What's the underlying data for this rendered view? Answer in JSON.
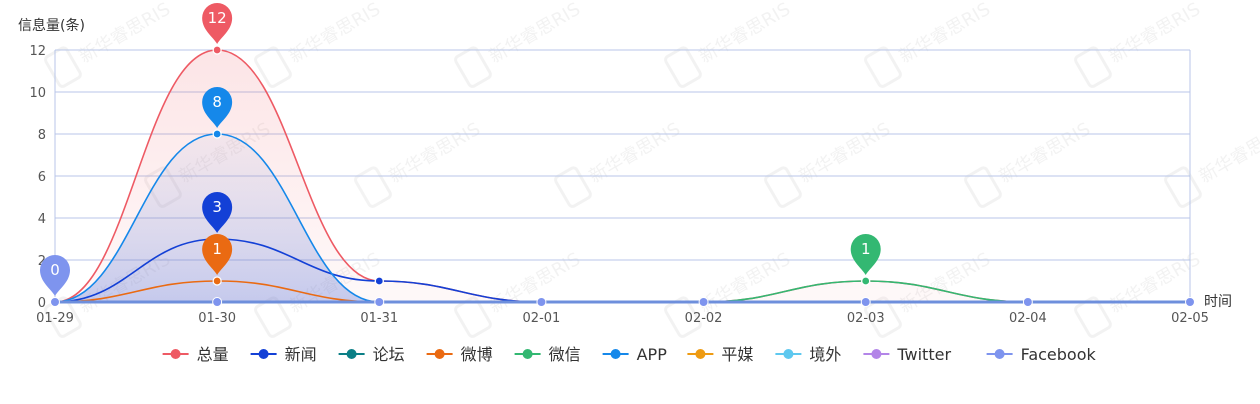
{
  "chart_data": {
    "type": "line",
    "title": "",
    "ylabel": "信息量(条)",
    "xlabel": "时间",
    "categories": [
      "01-29",
      "01-30",
      "01-31",
      "02-01",
      "02-02",
      "02-03",
      "02-04",
      "02-05"
    ],
    "ylim": [
      0,
      12
    ],
    "yticks": [
      0,
      2,
      4,
      6,
      8,
      10,
      12
    ],
    "grid": true,
    "legend_position": "bottom",
    "series": [
      {
        "name": "总量",
        "color": "#ee5a64",
        "values": [
          0,
          12,
          1,
          0,
          0,
          1,
          0,
          0
        ],
        "area": true,
        "peak_label": "12"
      },
      {
        "name": "新闻",
        "color": "#1340d6",
        "values": [
          0,
          3,
          1,
          0,
          0,
          0,
          0,
          0
        ],
        "area": false,
        "peak_label": "3"
      },
      {
        "name": "论坛",
        "color": "#0b7f86",
        "values": [
          0,
          0,
          0,
          0,
          0,
          0,
          0,
          0
        ],
        "area": false
      },
      {
        "name": "微博",
        "color": "#ea6a12",
        "values": [
          0,
          1,
          0,
          0,
          0,
          0,
          0,
          0
        ],
        "area": false,
        "peak_label": "1"
      },
      {
        "name": "微信",
        "color": "#33b872",
        "values": [
          0,
          0,
          0,
          0,
          0,
          1,
          0,
          0
        ],
        "area": false,
        "peak_label": "1"
      },
      {
        "name": "APP",
        "color": "#1588ea",
        "values": [
          0,
          8,
          0,
          0,
          0,
          0,
          0,
          0
        ],
        "area": true,
        "peak_label": "8"
      },
      {
        "name": "平媒",
        "color": "#ee9b13",
        "values": [
          0,
          0,
          0,
          0,
          0,
          0,
          0,
          0
        ],
        "area": false
      },
      {
        "name": "境外",
        "color": "#5ec8ef",
        "values": [
          0,
          0,
          0,
          0,
          0,
          0,
          0,
          0
        ],
        "area": false
      },
      {
        "name": "Twitter",
        "color": "#b385e8",
        "values": [
          0,
          0,
          0,
          0,
          0,
          0,
          0,
          0
        ],
        "area": false
      },
      {
        "name": "Facebook",
        "color": "#7e94ee",
        "values": [
          0,
          0,
          0,
          0,
          0,
          0,
          0,
          0
        ],
        "area": false,
        "peak_label": "0"
      }
    ],
    "watermark": "新华睿思RIS"
  }
}
